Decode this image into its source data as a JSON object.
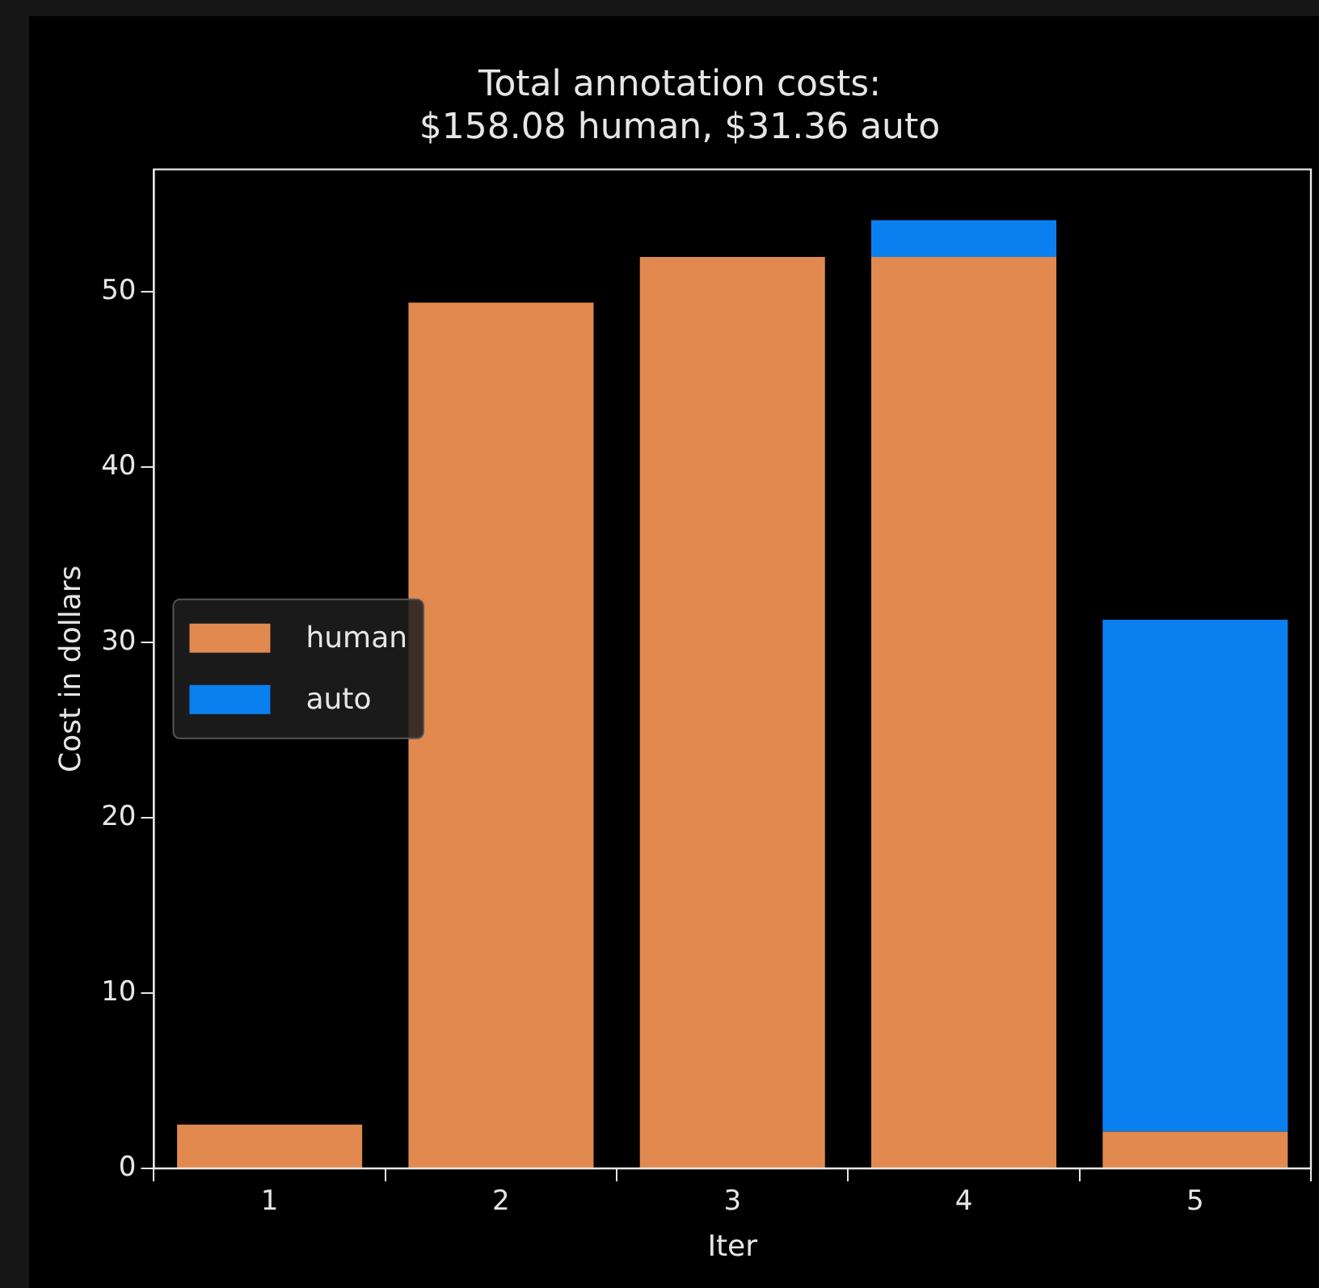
{
  "chart_data": {
    "type": "bar",
    "title": "Total annotation costs:\n$158.08 human, $31.36 auto",
    "xlabel": "Iter",
    "ylabel": "Cost in dollars",
    "categories": [
      "1",
      "2",
      "3",
      "4",
      "5"
    ],
    "stacked": true,
    "series": [
      {
        "name": "human",
        "color": "#e1894f",
        "values": [
          2.5,
          49.4,
          52.0,
          52.0,
          2.1
        ]
      },
      {
        "name": "auto",
        "color": "#0a80f0",
        "values": [
          0,
          0,
          0,
          2.1,
          29.2
        ]
      }
    ],
    "ylim": [
      0,
      57
    ],
    "yticks": [
      0,
      10,
      20,
      30,
      40,
      50
    ],
    "grid": false,
    "legend": "center left"
  }
}
